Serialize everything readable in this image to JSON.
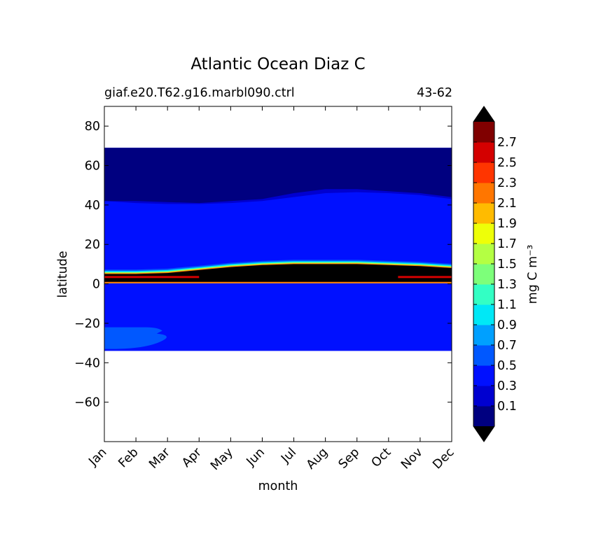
{
  "chart_data": {
    "type": "contourf",
    "title": "Atlantic Ocean Diaz C",
    "subtitle_left": "giaf.e20.T62.g16.marbl090.ctrl",
    "subtitle_right": "43-62",
    "xlabel": "month",
    "ylabel": "latitude",
    "x_categories": [
      "Jan",
      "Feb",
      "Mar",
      "Apr",
      "May",
      "Jun",
      "Jul",
      "Aug",
      "Sep",
      "Oct",
      "Nov",
      "Dec"
    ],
    "xlim": [
      0,
      11
    ],
    "ylim": [
      -80,
      90
    ],
    "y_ticks": [
      80,
      60,
      40,
      20,
      0,
      -20,
      -40,
      -60
    ],
    "y_tick_labels": [
      "80",
      "60",
      "40",
      "20",
      "0",
      "−20",
      "−40",
      "−60"
    ],
    "data_lat_range": [
      -34,
      69
    ],
    "regions": [
      {
        "name": "ocean background",
        "value": 0.35,
        "lat_range": [
          -34,
          69
        ]
      },
      {
        "name": "northern low band",
        "value": 0.05,
        "lat_range": [
          41,
          69
        ],
        "south_boundary_lat": [
          42,
          41,
          40.5,
          40.5,
          41,
          42,
          44,
          46,
          46.5,
          46,
          45,
          43
        ],
        "north_low_region_boundary_lat": [
          42,
          42,
          41.5,
          41,
          42,
          43,
          46,
          48,
          48,
          47,
          46,
          44
        ]
      },
      {
        "name": "equatorial high band",
        "value": 2.9,
        "lat_range": [
          1,
          10
        ],
        "north_boundary_lat": [
          5,
          5,
          5.5,
          7,
          8.5,
          9.5,
          10,
          10,
          10,
          9.5,
          9,
          8
        ]
      },
      {
        "name": "southern subtropical patch",
        "value": 0.6,
        "lat_range": [
          -33,
          -22
        ],
        "month_range": [
          0,
          2.1
        ]
      }
    ],
    "colorbar": {
      "label": "mg C m⁻³",
      "levels": [
        0,
        0.1,
        0.3,
        0.5,
        0.7,
        0.9,
        1.1,
        1.3,
        1.5,
        1.7,
        1.9,
        2.1,
        2.3,
        2.5,
        2.7,
        2.8
      ],
      "tick_labels": [
        "0.1",
        "0.3",
        "0.5",
        "0.7",
        "0.9",
        "1.1",
        "1.3",
        "1.5",
        "1.7",
        "1.9",
        "2.1",
        "2.3",
        "2.5",
        "2.7"
      ],
      "colors": [
        "#000080",
        "#0000d0",
        "#0010ff",
        "#0058ff",
        "#00a0ff",
        "#00e8f6",
        "#33ffc4",
        "#7dff7a",
        "#b4ff43",
        "#eeff08",
        "#ffbb00",
        "#ff7600",
        "#ff3500",
        "#d40000",
        "#800000"
      ],
      "extend": "both",
      "under_color": "#000000",
      "over_color": "#000000"
    }
  }
}
